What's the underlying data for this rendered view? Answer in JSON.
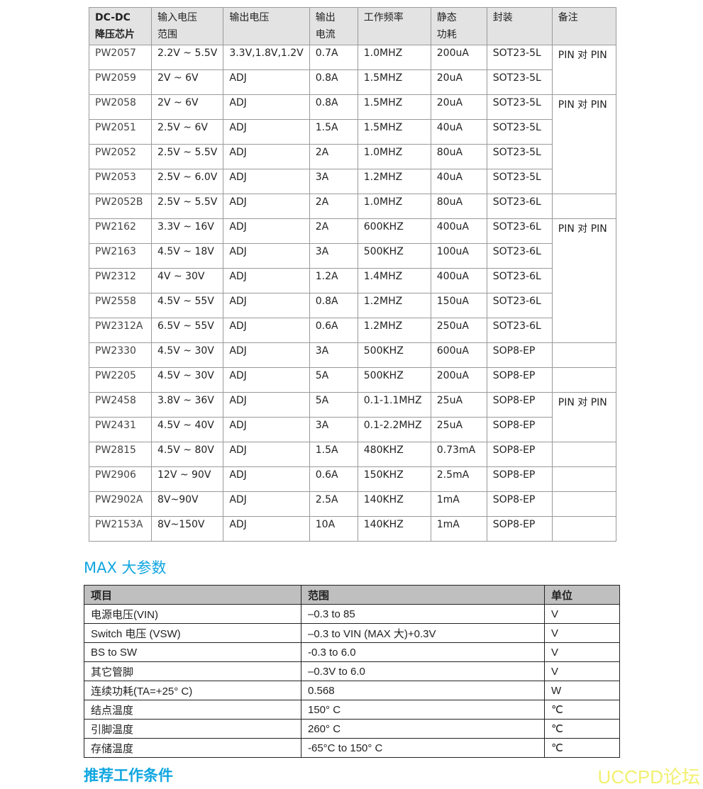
{
  "chip_table": {
    "headers": [
      "DC-DC\n降压芯片",
      "输入电压\n范围",
      "输出电压",
      "输出\n电流",
      "工作频率",
      "静态\n功耗",
      "封装",
      "备注"
    ],
    "rows": [
      [
        "PW2057",
        "2.2V ~ 5.5V",
        "3.3V,1.8V,1.2V",
        "0.7A",
        "1.0MHZ",
        "200uA",
        "SOT23-5L"
      ],
      [
        "PW2059",
        "2V ~ 6V",
        "ADJ",
        "0.8A",
        "1.5MHZ",
        "20uA",
        "SOT23-5L"
      ],
      [
        "PW2058",
        "2V ~ 6V",
        "ADJ",
        "0.8A",
        "1.5MHZ",
        "20uA",
        "SOT23-5L"
      ],
      [
        "PW2051",
        "2.5V ~ 6V",
        "ADJ",
        "1.5A",
        "1.5MHZ",
        "40uA",
        "SOT23-5L"
      ],
      [
        "PW2052",
        "2.5V ~ 5.5V",
        "ADJ",
        "2A",
        "1.0MHZ",
        "80uA",
        "SOT23-5L"
      ],
      [
        "PW2053",
        "2.5V ~ 6.0V",
        "ADJ",
        "3A",
        "1.2MHZ",
        "40uA",
        "SOT23-5L"
      ],
      [
        "PW2052B",
        "2.5V ~ 5.5V",
        "ADJ",
        "2A",
        "1.0MHZ",
        "80uA",
        "SOT23-6L"
      ],
      [
        "PW2162",
        "3.3V ~ 16V",
        "ADJ",
        "2A",
        "600KHZ",
        "400uA",
        "SOT23-6L"
      ],
      [
        "PW2163",
        "4.5V ~ 18V",
        "ADJ",
        "3A",
        "500KHZ",
        "100uA",
        "SOT23-6L"
      ],
      [
        "PW2312",
        "4V ~ 30V",
        "ADJ",
        "1.2A",
        "1.4MHZ",
        "400uA",
        "SOT23-6L"
      ],
      [
        "PW2558",
        "4.5V ~ 55V",
        "ADJ",
        "0.8A",
        "1.2MHZ",
        "150uA",
        "SOT23-6L"
      ],
      [
        "PW2312A",
        "6.5V ~ 55V",
        "ADJ",
        "0.6A",
        "1.2MHZ",
        "250uA",
        "SOT23-6L"
      ],
      [
        "PW2330",
        "4.5V ~ 30V",
        "ADJ",
        "3A",
        "500KHZ",
        "600uA",
        "SOP8-EP"
      ],
      [
        "PW2205",
        "4.5V ~ 30V",
        "ADJ",
        "5A",
        "500KHZ",
        "200uA",
        "SOP8-EP"
      ],
      [
        "PW2458",
        "3.8V ~ 36V",
        "ADJ",
        "5A",
        "0.1-1.1MHZ",
        "25uA",
        "SOP8-EP"
      ],
      [
        "PW2431",
        "4.5V ~ 40V",
        "ADJ",
        "3A",
        "0.1-2.2MHZ",
        "25uA",
        "SOP8-EP"
      ],
      [
        "PW2815",
        "4.5V ~ 80V",
        "ADJ",
        "1.5A",
        "480KHZ",
        "0.73mA",
        "SOP8-EP"
      ],
      [
        "PW2906",
        "12V ~ 90V",
        "ADJ",
        "0.6A",
        "150KHZ",
        "2.5mA",
        "SOP8-EP"
      ],
      [
        "PW2902A",
        "8V~90V",
        "ADJ",
        "2.5A",
        "140KHZ",
        "1mA",
        "SOP8-EP"
      ],
      [
        "PW2153A",
        "8V~150V",
        "ADJ",
        "10A",
        "140KHZ",
        "1mA",
        "SOP8-EP"
      ]
    ],
    "remarks": [
      {
        "text": "PIN 对 PIN",
        "rows": 2
      },
      {
        "text": "PIN 对 PIN",
        "rows": 4
      },
      {
        "text": "",
        "rows": 1
      },
      {
        "text": "PIN 对 PIN",
        "rows": 5
      },
      {
        "text": "",
        "rows": 1
      },
      {
        "text": "",
        "rows": 1
      },
      {
        "text": "PIN 对 PIN",
        "rows": 2
      },
      {
        "text": "",
        "rows": 1
      },
      {
        "text": "",
        "rows": 1
      },
      {
        "text": "",
        "rows": 1
      },
      {
        "text": "",
        "rows": 1
      }
    ]
  },
  "max_title": "MAX 大参数",
  "max_table": {
    "headers": [
      "项目",
      "范围",
      "单位"
    ],
    "rows": [
      [
        "电源电压(VIN)",
        "–0.3 to 85",
        "V"
      ],
      [
        "Switch 电压  (VSW)",
        "–0.3 to VIN (MAX 大)+0.3V",
        "V"
      ],
      [
        "BS to SW",
        "-0.3 to 6.0",
        "V"
      ],
      [
        "其它管脚",
        "–0.3V to 6.0",
        "V"
      ],
      [
        "连续功耗(TA=+25° C)",
        "0.568",
        "W"
      ],
      [
        "结点温度",
        "150° C",
        "℃"
      ],
      [
        "引脚温度",
        "260° C",
        "℃"
      ],
      [
        "存储温度",
        "-65°C to 150° C",
        "℃"
      ]
    ]
  },
  "rec_title": "推荐工作条件",
  "watermark": "UCCPD论坛",
  "colors": {
    "heading": "#10a6e0",
    "watermark": "#f2f070"
  }
}
